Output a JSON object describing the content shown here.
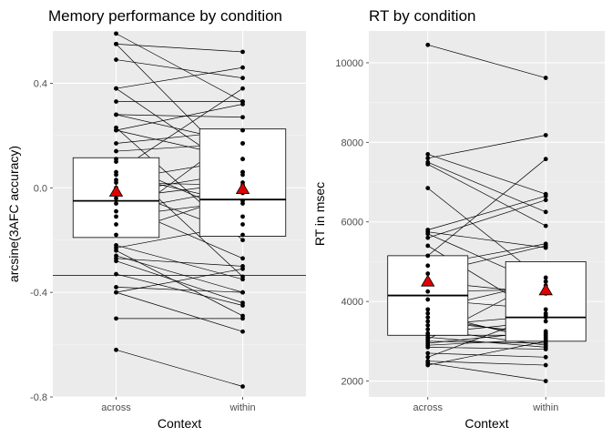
{
  "chart_data": [
    {
      "type": "boxplot-paired",
      "title": "Memory performance by condition",
      "xlabel": "Context",
      "ylabel": "arcsine(3AFC accuracy)",
      "categories": [
        "across",
        "within"
      ],
      "ylim": [
        -0.8,
        0.6
      ],
      "yticks": [
        -0.8,
        -0.4,
        0.0,
        0.4
      ],
      "ytick_labels": [
        "-0.8",
        "-0.4",
        "0.0",
        "0.4"
      ],
      "grid": true,
      "box": {
        "across": {
          "q1": -0.19,
          "median": -0.05,
          "q3": 0.115,
          "mean": -0.015
        },
        "within": {
          "q1": -0.185,
          "median": -0.045,
          "q3": 0.225,
          "mean": -0.005
        }
      },
      "hline": -0.335,
      "pairs": [
        [
          0.59,
          0.33
        ],
        [
          0.55,
          0.52
        ],
        [
          0.55,
          0.06
        ],
        [
          0.49,
          0.42
        ],
        [
          0.38,
          0.05
        ],
        [
          0.38,
          0.46
        ],
        [
          0.33,
          0.33
        ],
        [
          0.28,
          0.27
        ],
        [
          0.28,
          0.17
        ],
        [
          0.23,
          -0.2
        ],
        [
          0.22,
          0.32
        ],
        [
          0.22,
          0.11
        ],
        [
          0.17,
          0.22
        ],
        [
          0.14,
          0.17
        ],
        [
          0.11,
          -0.34
        ],
        [
          0.1,
          -0.11
        ],
        [
          0.06,
          0.38
        ],
        [
          0.05,
          -0.06
        ],
        [
          0.03,
          0.11
        ],
        [
          0.02,
          0.01
        ],
        [
          0.0,
          -0.18
        ],
        [
          -0.02,
          0.06
        ],
        [
          -0.04,
          0.02
        ],
        [
          -0.06,
          -0.27
        ],
        [
          -0.09,
          0.0
        ],
        [
          -0.11,
          -0.05
        ],
        [
          -0.14,
          0.22
        ],
        [
          -0.18,
          -0.02
        ],
        [
          -0.22,
          -0.35
        ],
        [
          -0.23,
          -0.14
        ],
        [
          -0.26,
          -0.4
        ],
        [
          -0.27,
          -0.3
        ],
        [
          -0.28,
          -0.44
        ],
        [
          -0.33,
          -0.45
        ],
        [
          -0.38,
          -0.4
        ],
        [
          -0.4,
          -0.55
        ],
        [
          -0.4,
          -0.31
        ],
        [
          -0.5,
          -0.5
        ],
        [
          -0.62,
          -0.76
        ],
        [
          -0.24,
          -0.49
        ]
      ]
    },
    {
      "type": "boxplot-paired",
      "title": "RT by condition",
      "xlabel": "Context",
      "ylabel": "RT in msec",
      "categories": [
        "across",
        "within"
      ],
      "ylim": [
        1600,
        10800
      ],
      "yticks": [
        2000,
        4000,
        6000,
        8000,
        10000
      ],
      "ytick_labels": [
        "2000",
        "4000",
        "6000",
        "8000",
        "10000"
      ],
      "grid": true,
      "box": {
        "across": {
          "q1": 3150,
          "median": 4150,
          "q3": 5150,
          "mean": 4500
        },
        "within": {
          "q1": 3000,
          "median": 3600,
          "q3": 5000,
          "mean": 4280
        }
      },
      "pairs": [
        [
          10450,
          9620
        ],
        [
          7700,
          6700
        ],
        [
          7600,
          8180
        ],
        [
          7500,
          6250
        ],
        [
          7450,
          5900
        ],
        [
          6850,
          4500
        ],
        [
          5800,
          6650
        ],
        [
          5750,
          5350
        ],
        [
          5700,
          4400
        ],
        [
          5600,
          6550
        ],
        [
          5400,
          3600
        ],
        [
          5150,
          7580
        ],
        [
          4900,
          5450
        ],
        [
          4700,
          5400
        ],
        [
          4500,
          4200
        ],
        [
          4250,
          4300
        ],
        [
          4050,
          3800
        ],
        [
          3800,
          4500
        ],
        [
          3700,
          3000
        ],
        [
          3600,
          3100
        ],
        [
          3500,
          3200
        ],
        [
          3400,
          3650
        ],
        [
          3300,
          2900
        ],
        [
          3200,
          3500
        ],
        [
          3150,
          3150
        ],
        [
          3100,
          2850
        ],
        [
          3050,
          4600
        ],
        [
          3000,
          2950
        ],
        [
          2950,
          3250
        ],
        [
          2900,
          3050
        ],
        [
          2850,
          2800
        ],
        [
          2700,
          2600
        ],
        [
          2600,
          3700
        ],
        [
          2500,
          2400
        ],
        [
          2450,
          2000
        ],
        [
          2400,
          3000
        ]
      ]
    }
  ]
}
